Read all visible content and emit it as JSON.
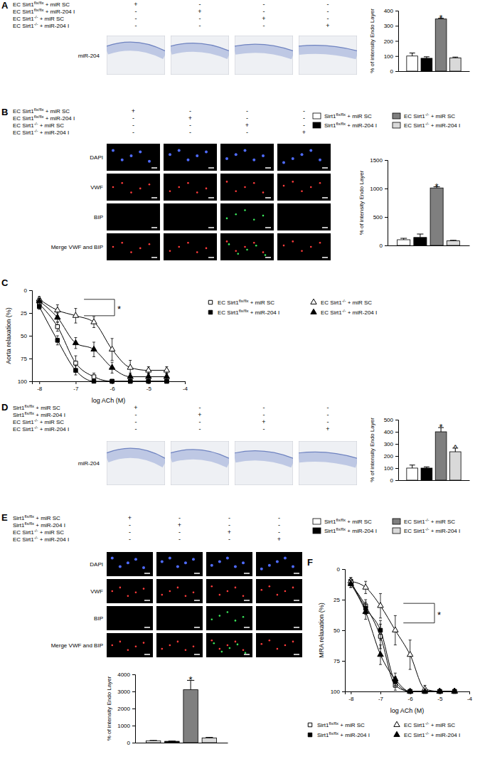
{
  "chart_data": [
    {
      "type": "bar",
      "y_label": "% of intensity Endo Layer",
      "categories": [
        null
      ],
      "tick_labels": "y",
      "ylim": [
        0,
        400
      ],
      "yticks": [
        0,
        100,
        200,
        300,
        400
      ],
      "series": [
        {
          "color": "#ffffff",
          "values": [
            100
          ],
          "errors": [
            20
          ]
        },
        {
          "color": "#000000",
          "values": [
            85
          ],
          "errors": [
            10
          ]
        },
        {
          "color": "#7f7f7f",
          "values": [
            345
          ],
          "errors": [
            5
          ]
        },
        {
          "color": "#d9d9d9",
          "values": [
            88
          ],
          "errors": [
            5
          ]
        }
      ],
      "annotations": [
        {
          "text": "*",
          "series": 2
        }
      ]
    },
    {
      "type": "bar",
      "y_label": "% of intensity Endo Layer",
      "categories": [
        null
      ],
      "tick_labels": "y",
      "ylim": [
        0,
        1500
      ],
      "yticks": [
        0,
        500,
        1000,
        1500
      ],
      "legend": "top",
      "series": [
        {
          "name": "Sirt1flx/flx + miR SC",
          "color": "#ffffff",
          "values": [
            100
          ],
          "errors": [
            25
          ]
        },
        {
          "name": "Sirt1flx/flx + miR-204 I",
          "color": "#000000",
          "values": [
            140
          ],
          "errors": [
            60
          ]
        },
        {
          "name": "EC Sirt1-/- + miR SC",
          "color": "#7f7f7f",
          "values": [
            1010
          ],
          "errors": [
            20
          ]
        },
        {
          "name": "EC Sirt1-/- + miR-204 I",
          "color": "#d9d9d9",
          "values": [
            80
          ],
          "errors": [
            10
          ]
        }
      ],
      "annotations": [
        {
          "text": "*",
          "series": 2
        }
      ]
    },
    {
      "type": "line",
      "x_label": "log ACh (M)",
      "y_label": "Aorta relaxation (%)",
      "x": [
        -8,
        -7.5,
        -7,
        -6.5,
        -6,
        -5.5,
        -5,
        -4.5
      ],
      "xlim": [
        -8.2,
        -4
      ],
      "xticks": [
        -8,
        -7,
        -6,
        -5,
        -4
      ],
      "ylim": [
        100,
        0
      ],
      "yticks": [
        0,
        25,
        50,
        75,
        100
      ],
      "legend": "right",
      "series": [
        {
          "name": "EC Sirt1flx/flx + miR SC",
          "color": "#000000",
          "marker": "square-open",
          "values": [
            15,
            40,
            80,
            95,
            100,
            100,
            100,
            100
          ],
          "errors": [
            3,
            5,
            8,
            4,
            0,
            0,
            0,
            0
          ]
        },
        {
          "name": "EC Sirt1flx/flx + miR-204 I",
          "color": "#000000",
          "marker": "square",
          "values": [
            18,
            55,
            88,
            100,
            100,
            100,
            100,
            100
          ],
          "errors": [
            3,
            5,
            5,
            0,
            0,
            0,
            0,
            0
          ]
        },
        {
          "name": "EC Sirt1-/- + miR SC",
          "color": "#000000",
          "marker": "triangle-open",
          "values": [
            10,
            22,
            28,
            35,
            65,
            85,
            88,
            88
          ],
          "errors": [
            3,
            6,
            8,
            6,
            12,
            8,
            4,
            4
          ]
        },
        {
          "name": "EC Sirt1-/- + miR-204 I",
          "color": "#000000",
          "marker": "triangle",
          "values": [
            12,
            30,
            58,
            65,
            85,
            95,
            95,
            95
          ],
          "errors": [
            3,
            5,
            6,
            8,
            6,
            4,
            4,
            4
          ]
        }
      ],
      "annotations": [
        {
          "text": "*"
        }
      ]
    },
    {
      "type": "bar",
      "y_label": "% of intensity Endo Layer",
      "categories": [
        null
      ],
      "tick_labels": "y",
      "ylim": [
        0,
        500
      ],
      "yticks": [
        0,
        100,
        200,
        300,
        400,
        500
      ],
      "series": [
        {
          "color": "#ffffff",
          "values": [
            100
          ],
          "errors": [
            25
          ]
        },
        {
          "color": "#000000",
          "values": [
            100
          ],
          "errors": [
            10
          ]
        },
        {
          "color": "#7f7f7f",
          "values": [
            400
          ],
          "errors": [
            35
          ]
        },
        {
          "color": "#d9d9d9",
          "values": [
            235
          ],
          "errors": [
            30
          ]
        }
      ],
      "annotations": [
        {
          "text": "*",
          "series": 2
        },
        {
          "text": "^",
          "series": 3
        }
      ]
    },
    {
      "type": "bar",
      "y_label": "% of intensity Endo Layer",
      "categories": [
        null
      ],
      "tick_labels": "y",
      "ylim": [
        0,
        4000
      ],
      "yticks": [
        0,
        1000,
        2000,
        3000,
        4000
      ],
      "legend": "top",
      "series": [
        {
          "name": "Sirt1flx/flx + miR SC",
          "color": "#ffffff",
          "values": [
            100
          ],
          "errors": [
            30
          ]
        },
        {
          "name": "Sirt1flx/flx + miR-204 I",
          "color": "#000000",
          "values": [
            80
          ],
          "errors": [
            15
          ]
        },
        {
          "name": "EC Sirt1-/- + miR SC",
          "color": "#7f7f7f",
          "values": [
            3100
          ],
          "errors": [
            550
          ]
        },
        {
          "name": "EC Sirt1-/- + miR-204 I",
          "color": "#d9d9d9",
          "values": [
            280
          ],
          "errors": [
            30
          ]
        }
      ],
      "annotations": [
        {
          "text": "*",
          "series": 2
        }
      ]
    },
    {
      "type": "line",
      "x_label": "log ACh (M)",
      "y_label": "MRA relaxation (%)",
      "x": [
        -8,
        -7.5,
        -7,
        -6.5,
        -6,
        -5.5,
        -5,
        -4.5
      ],
      "xlim": [
        -8.2,
        -4
      ],
      "xticks": [
        -8,
        -7,
        -6,
        -5,
        -4
      ],
      "ylim": [
        100,
        0
      ],
      "yticks": [
        0,
        25,
        50,
        75,
        100
      ],
      "legend": "bottom",
      "series": [
        {
          "name": "Sirt1flx/flx + miR SC",
          "color": "#000000",
          "marker": "square-open",
          "values": [
            12,
            30,
            55,
            95,
            100,
            100,
            100,
            100
          ],
          "errors": [
            3,
            5,
            10,
            4,
            0,
            0,
            0,
            0
          ]
        },
        {
          "name": "Sirt1flx/flx + miR-204 I",
          "color": "#000000",
          "marker": "square",
          "values": [
            10,
            32,
            50,
            92,
            100,
            100,
            100,
            100
          ],
          "errors": [
            3,
            5,
            8,
            4,
            0,
            0,
            0,
            0
          ]
        },
        {
          "name": "EC Sirt1-/- + miR SC",
          "color": "#000000",
          "marker": "triangle-open",
          "values": [
            10,
            15,
            30,
            50,
            70,
            98,
            100,
            100
          ],
          "errors": [
            3,
            5,
            10,
            12,
            12,
            3,
            0,
            0
          ]
        },
        {
          "name": "EC Sirt1-/- + miR-204 I",
          "color": "#000000",
          "marker": "triangle",
          "values": [
            12,
            35,
            70,
            90,
            100,
            100,
            100,
            100
          ],
          "errors": [
            3,
            6,
            8,
            5,
            0,
            0,
            0,
            0
          ]
        }
      ],
      "annotations": [
        {
          "text": "*"
        }
      ]
    }
  ],
  "figure": {
    "panels": [
      {
        "letter": "A",
        "table": {
          "rows": [
            "EC Sirt1flx/flx + miR SC",
            "EC Sirt1flx/flx + miR-204 I",
            "EC Sirt1-/- + miR SC",
            "EC Sirt1-/- + miR-204 I"
          ],
          "signs": [
            [
              "+",
              "-",
              "-",
              "-"
            ],
            [
              "-",
              "+",
              "-",
              "-"
            ],
            [
              "-",
              "-",
              "+",
              "-"
            ],
            [
              "-",
              "-",
              "-",
              "+"
            ]
          ]
        },
        "image_rows": [
          "miR-204"
        ]
      },
      {
        "letter": "B",
        "table": {
          "rows": [
            "EC Sirt1flx/flx + miR SC",
            "EC Sirt1flx/flx + miR-204 I",
            "EC Sirt1-/- + miR SC",
            "EC Sirt1-/- + miR-204 I"
          ],
          "signs": [
            [
              "+",
              "-",
              "-",
              "-"
            ],
            [
              "-",
              "+",
              "-",
              "-"
            ],
            [
              "-",
              "-",
              "+",
              "-"
            ],
            [
              "-",
              "-",
              "-",
              "+"
            ]
          ]
        },
        "image_rows": [
          "DAPI",
          "VWF",
          "BIP",
          "Merge VWF and BIP"
        ]
      },
      {
        "letter": "C"
      },
      {
        "letter": "D",
        "table": {
          "rows": [
            "Sirt1flx/flx + miR SC",
            "Sirt1flx/flx + miR-204 I",
            "EC Sirt1-/- + miR SC",
            "EC Sirt1-/- + miR-204 I"
          ],
          "signs": [
            [
              "+",
              "-",
              "-",
              "-"
            ],
            [
              "-",
              "+",
              "-",
              "-"
            ],
            [
              "-",
              "-",
              "+",
              "-"
            ],
            [
              "-",
              "-",
              "-",
              "+"
            ]
          ]
        },
        "image_rows": [
          "miR-204"
        ]
      },
      {
        "letter": "E",
        "table": {
          "rows": [
            "Sirt1flx/flx + miR SC",
            "Sirt1flx/flx + miR-204 I",
            "EC Sirt1-/- + miR SC",
            "EC Sirt1-/- + miR-204 I"
          ],
          "signs": [
            [
              "+",
              "-",
              "-",
              "-"
            ],
            [
              "-",
              "+",
              "-",
              "-"
            ],
            [
              "-",
              "-",
              "+",
              "-"
            ],
            [
              "-",
              "-",
              "-",
              "+"
            ]
          ]
        },
        "image_rows": [
          "DAPI",
          "VWF",
          "BIP",
          "Merge VWF and BIP"
        ]
      },
      {
        "letter": "F"
      }
    ]
  }
}
